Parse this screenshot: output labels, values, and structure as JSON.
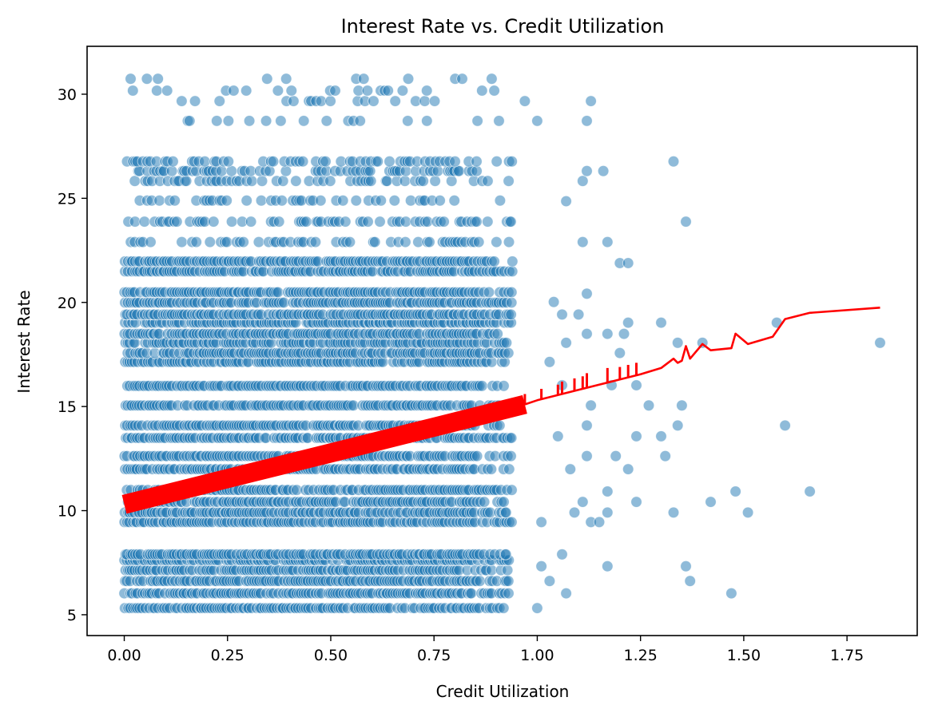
{
  "chart_data": {
    "type": "scatter",
    "title": "Interest Rate vs. Credit Utilization",
    "xlabel": "Credit Utilization",
    "ylabel": "Interest Rate",
    "xlim": [
      -0.09,
      1.92
    ],
    "ylim": [
      4.0,
      32.3
    ],
    "x_ticks": [
      0.0,
      0.25,
      0.5,
      0.75,
      1.0,
      1.25,
      1.5,
      1.75
    ],
    "x_tick_labels": [
      "0.00",
      "0.25",
      "0.50",
      "0.75",
      "1.00",
      "1.25",
      "1.50",
      "1.75"
    ],
    "y_ticks": [
      5,
      10,
      15,
      20,
      25,
      30
    ],
    "y_tick_labels": [
      "5",
      "10",
      "15",
      "20",
      "25",
      "30"
    ],
    "grid": false,
    "colors": {
      "points": "#1f77b4",
      "trend": "#ff0000"
    },
    "series": [
      {
        "kind": "scatter",
        "rate_levels": [
          5.32,
          6.03,
          6.62,
          7.14,
          7.62,
          7.9,
          9.45,
          9.91,
          10.42,
          10.99,
          11.99,
          12.62,
          13.49,
          14.09,
          15.05,
          15.99,
          17.14,
          17.57,
          18.06,
          18.49,
          19.03,
          19.42,
          19.99,
          20.49,
          21.49,
          21.97,
          22.9,
          23.88,
          24.89,
          25.83,
          26.31,
          26.77,
          28.72,
          29.67,
          30.17,
          30.74
        ],
        "max_dense_utilization": 0.94,
        "dense_stride": 0.006,
        "sparse_points": [
          [
            1.0,
            5.32
          ],
          [
            1.07,
            6.03
          ],
          [
            1.47,
            6.03
          ],
          [
            1.03,
            6.62
          ],
          [
            1.37,
            6.62
          ],
          [
            1.17,
            7.33
          ],
          [
            1.36,
            7.33
          ],
          [
            1.01,
            7.33
          ],
          [
            1.06,
            7.9
          ],
          [
            1.01,
            9.45
          ],
          [
            1.13,
            9.45
          ],
          [
            1.15,
            9.45
          ],
          [
            1.09,
            9.91
          ],
          [
            1.17,
            9.91
          ],
          [
            1.33,
            9.91
          ],
          [
            1.51,
            9.91
          ],
          [
            1.11,
            10.42
          ],
          [
            1.24,
            10.42
          ],
          [
            1.42,
            10.42
          ],
          [
            1.48,
            10.92
          ],
          [
            1.66,
            10.92
          ],
          [
            1.17,
            10.92
          ],
          [
            1.08,
            11.99
          ],
          [
            1.22,
            11.99
          ],
          [
            1.31,
            12.62
          ],
          [
            1.19,
            12.62
          ],
          [
            1.12,
            12.62
          ],
          [
            1.05,
            13.57
          ],
          [
            1.24,
            13.57
          ],
          [
            1.3,
            13.57
          ],
          [
            1.12,
            14.09
          ],
          [
            1.34,
            14.09
          ],
          [
            1.6,
            14.09
          ],
          [
            1.27,
            15.05
          ],
          [
            1.35,
            15.05
          ],
          [
            1.13,
            15.05
          ],
          [
            1.24,
            16.02
          ],
          [
            1.18,
            16.02
          ],
          [
            1.06,
            16.02
          ],
          [
            1.03,
            17.14
          ],
          [
            1.2,
            17.57
          ],
          [
            1.12,
            18.49
          ],
          [
            1.17,
            18.49
          ],
          [
            1.21,
            18.49
          ],
          [
            1.07,
            18.06
          ],
          [
            1.83,
            18.06
          ],
          [
            1.4,
            18.06
          ],
          [
            1.34,
            18.06
          ],
          [
            1.22,
            19.03
          ],
          [
            1.3,
            19.03
          ],
          [
            1.58,
            19.03
          ],
          [
            1.06,
            19.42
          ],
          [
            1.1,
            19.42
          ],
          [
            1.04,
            20.02
          ],
          [
            1.12,
            20.42
          ],
          [
            1.2,
            21.89
          ],
          [
            1.22,
            21.89
          ],
          [
            1.11,
            22.9
          ],
          [
            1.17,
            22.9
          ],
          [
            1.36,
            23.88
          ],
          [
            1.07,
            24.86
          ],
          [
            1.11,
            25.83
          ],
          [
            1.12,
            26.31
          ],
          [
            1.16,
            26.31
          ],
          [
            1.33,
            26.77
          ],
          [
            1.0,
            28.72
          ],
          [
            1.12,
            28.72
          ],
          [
            0.97,
            29.67
          ],
          [
            1.13,
            29.67
          ]
        ]
      },
      {
        "kind": "line",
        "trend": [
          [
            0.0,
            10.3
          ],
          [
            0.25,
            11.54
          ],
          [
            0.5,
            12.77
          ],
          [
            0.75,
            14.01
          ],
          [
            0.97,
            15.1
          ],
          [
            1.0,
            15.3
          ],
          [
            1.05,
            15.55
          ],
          [
            1.1,
            15.8
          ],
          [
            1.15,
            16.05
          ],
          [
            1.2,
            16.3
          ],
          [
            1.25,
            16.55
          ],
          [
            1.3,
            16.85
          ],
          [
            1.33,
            17.3
          ],
          [
            1.34,
            17.1
          ],
          [
            1.35,
            17.2
          ],
          [
            1.36,
            17.9
          ],
          [
            1.37,
            17.3
          ],
          [
            1.4,
            18.0
          ],
          [
            1.42,
            17.7
          ],
          [
            1.47,
            17.8
          ],
          [
            1.48,
            18.5
          ],
          [
            1.51,
            18.0
          ],
          [
            1.57,
            18.35
          ],
          [
            1.6,
            19.2
          ],
          [
            1.66,
            19.5
          ],
          [
            1.83,
            19.75
          ]
        ],
        "trend_spikes": [
          [
            0.97,
            0.5
          ],
          [
            1.01,
            0.5
          ],
          [
            1.05,
            0.5
          ],
          [
            1.06,
            0.6
          ],
          [
            1.09,
            0.6
          ],
          [
            1.11,
            0.6
          ],
          [
            1.12,
            0.7
          ],
          [
            1.17,
            0.7
          ],
          [
            1.2,
            0.6
          ],
          [
            1.22,
            0.6
          ],
          [
            1.24,
            0.6
          ]
        ]
      }
    ]
  }
}
